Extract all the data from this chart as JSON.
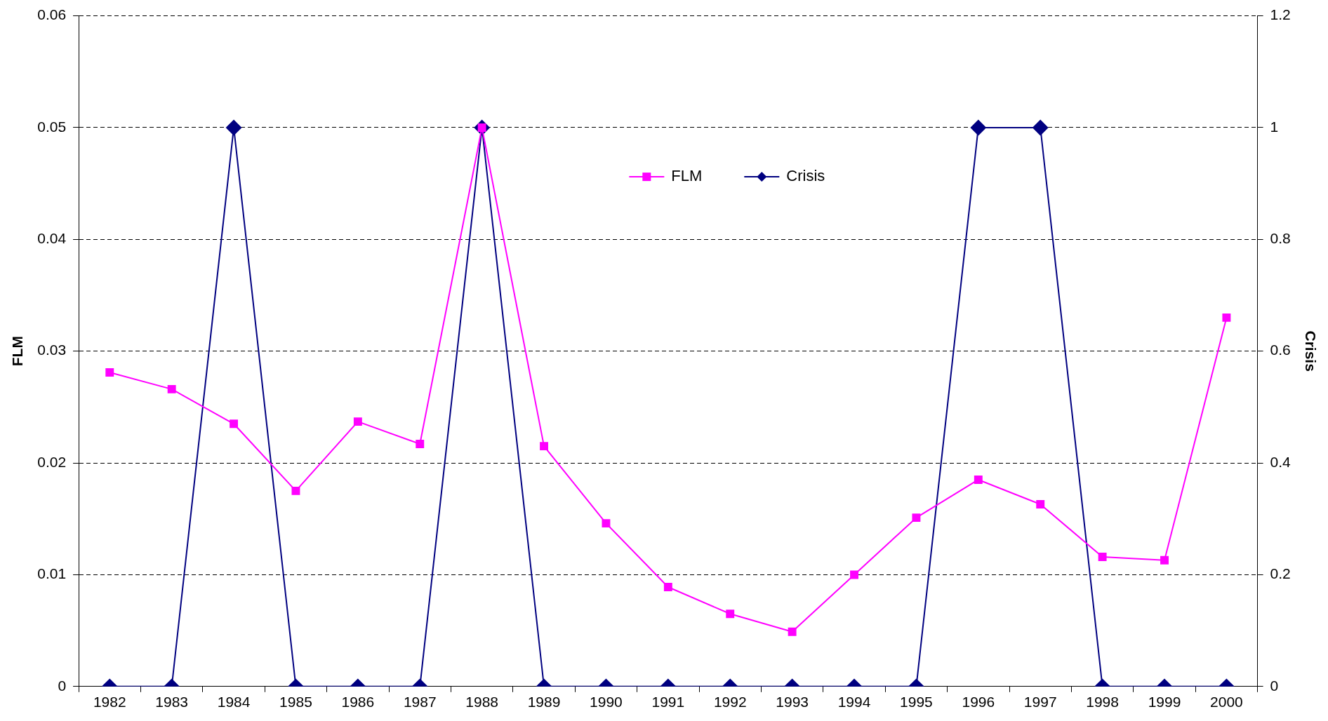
{
  "chart_data": {
    "type": "line",
    "xlabel": null,
    "ylabel": "FLM",
    "y2label": "Crisis",
    "categories": [
      "1982",
      "1983",
      "1984",
      "1985",
      "1986",
      "1987",
      "1988",
      "1989",
      "1990",
      "1991",
      "1992",
      "1993",
      "1994",
      "1995",
      "1996",
      "1997",
      "1998",
      "1999",
      "2000"
    ],
    "series": [
      {
        "name": "FLM",
        "color": "#ff00ff",
        "marker": "square",
        "values": [
          0.0281,
          0.0266,
          0.0235,
          0.0175,
          0.0237,
          0.0217,
          0.05,
          0.0215,
          0.0146,
          0.0089,
          0.0065,
          0.0049,
          0.01,
          0.0151,
          0.0185,
          0.0163,
          0.0116,
          0.0113,
          0.033
        ]
      },
      {
        "name": "Crisis",
        "color": "#000080",
        "marker": "diamond",
        "axis": "y2",
        "values": [
          0,
          0,
          1,
          0,
          0,
          0,
          1,
          0,
          0,
          0,
          0,
          0,
          0,
          0,
          1,
          1,
          0,
          0,
          0
        ]
      }
    ],
    "ylim": [
      0,
      0.06
    ],
    "yticks": [
      0,
      0.01,
      0.02,
      0.03,
      0.04,
      0.05,
      0.06
    ],
    "y2lim": [
      0,
      1.2
    ],
    "y2ticks": [
      0,
      0.2,
      0.4,
      0.6,
      0.8,
      1,
      1.2
    ],
    "grid": "y",
    "legend": "top",
    "line_style": "solid"
  }
}
